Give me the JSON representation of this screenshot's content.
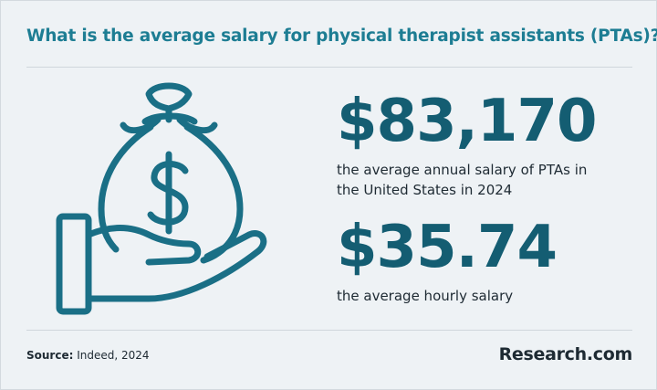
{
  "header": {
    "title": "What is the average salary for physical therapist assistants (PTAs)?"
  },
  "stats": [
    {
      "value": "$83,170",
      "description": "the average annual salary of PTAs in the United States in 2024"
    },
    {
      "value": "$35.74",
      "description": "the average hourly salary"
    }
  ],
  "footer": {
    "source_label": "Source:",
    "source": "Indeed, 2024",
    "brand": "Research.com"
  }
}
